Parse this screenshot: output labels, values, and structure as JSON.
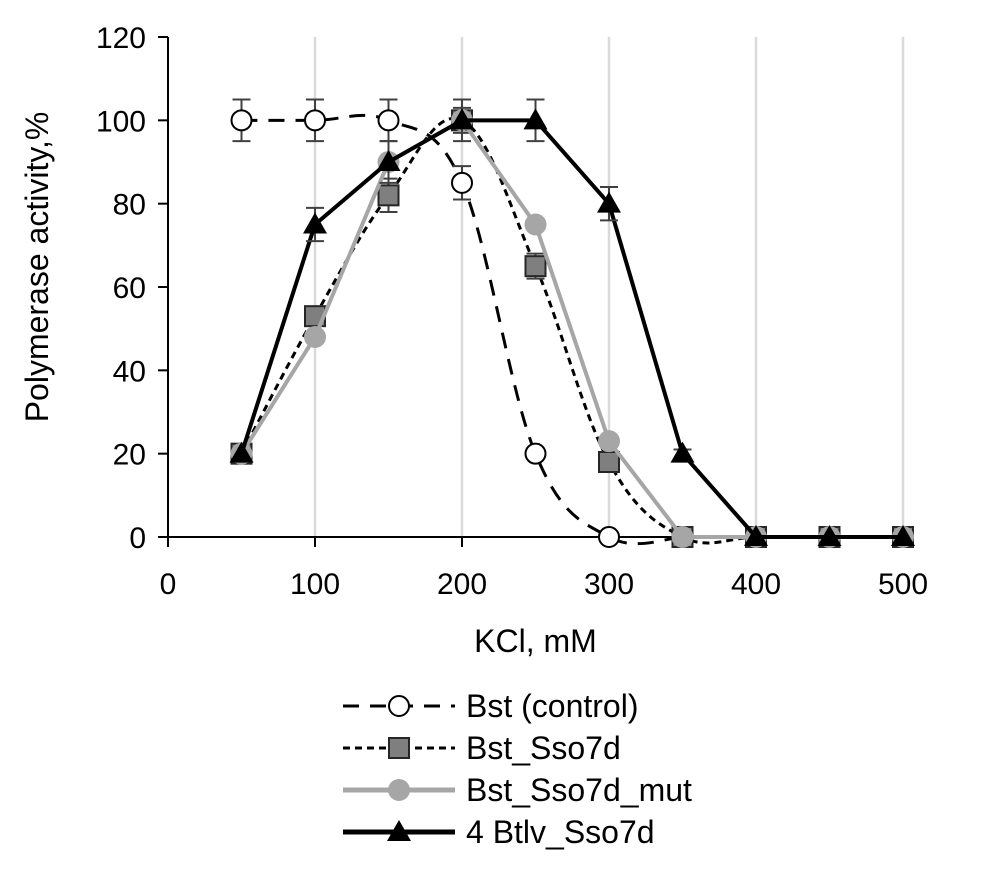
{
  "chart_data": {
    "type": "line",
    "title": "",
    "xlabel": "KCl, mM",
    "ylabel": "Polymerase activity,%",
    "xlim": [
      0,
      500
    ],
    "ylim": [
      0,
      120
    ],
    "xticks": [
      0,
      100,
      200,
      300,
      400,
      500
    ],
    "yticks": [
      0,
      20,
      40,
      60,
      80,
      100,
      120
    ],
    "xtick_labels": [
      "0",
      "100",
      "200",
      "300",
      "400",
      "500"
    ],
    "ytick_labels": [
      "0",
      "20",
      "40",
      "60",
      "80",
      "100",
      "120"
    ],
    "grid": "vertical",
    "legend_position": "bottom",
    "series": [
      {
        "name": "Bst (control)",
        "marker": "circle-open",
        "line": "dashed-long",
        "color": "#000000",
        "x": [
          50,
          100,
          150,
          200,
          250,
          300,
          350
        ],
        "y": [
          100,
          100,
          100,
          85,
          20,
          0,
          0
        ],
        "err": [
          5,
          5,
          5,
          4,
          0,
          0,
          0
        ]
      },
      {
        "name": "Bst_Sso7d",
        "marker": "square",
        "line": "dashed-short",
        "color": "#000000",
        "marker_color": "#7f7f7f",
        "x": [
          50,
          100,
          150,
          200,
          250,
          300,
          350,
          400,
          450,
          500
        ],
        "y": [
          20,
          53,
          82,
          100,
          65,
          18,
          0,
          0,
          0,
          0
        ],
        "err": [
          0,
          2,
          4,
          3,
          3,
          0,
          0,
          0,
          0,
          0
        ]
      },
      {
        "name": "Bst_Sso7d_mut",
        "marker": "circle",
        "line": "solid",
        "color": "#a6a6a6",
        "x": [
          50,
          100,
          150,
          200,
          250,
          300,
          350,
          400,
          450,
          500
        ],
        "y": [
          20,
          48,
          90,
          100,
          75,
          23,
          0,
          0,
          0,
          0
        ],
        "err": [
          0,
          0,
          0,
          0,
          0,
          0,
          0,
          0,
          0,
          0
        ]
      },
      {
        "name": "4 Btlv_Sso7d",
        "marker": "triangle",
        "line": "solid",
        "color": "#000000",
        "x": [
          50,
          100,
          150,
          200,
          250,
          300,
          350,
          400,
          450,
          500
        ],
        "y": [
          20,
          75,
          90,
          100,
          100,
          80,
          20,
          0,
          0,
          0
        ],
        "err": [
          0,
          4,
          5,
          5,
          5,
          4,
          1,
          0,
          0,
          0
        ]
      }
    ]
  }
}
